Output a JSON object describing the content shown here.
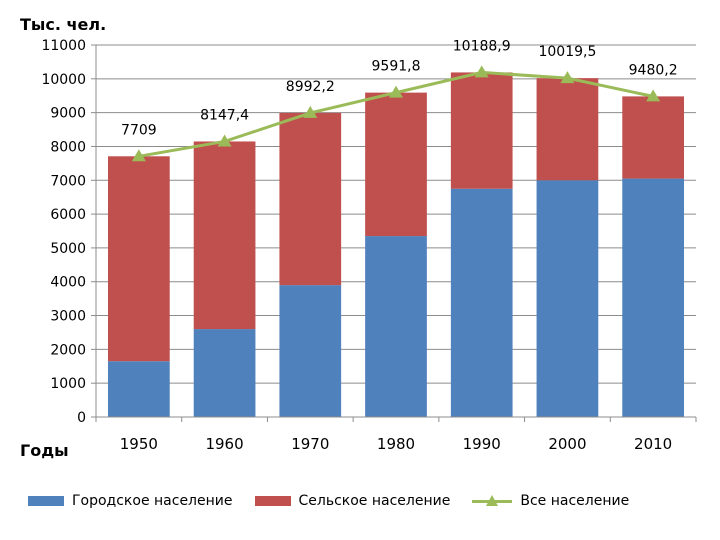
{
  "chart_data": {
    "type": "bar",
    "stacked": true,
    "ylabel": "Тыс. чел.",
    "xlabel": "Годы",
    "categories": [
      "1950",
      "1960",
      "1970",
      "1980",
      "1990",
      "2000",
      "2010"
    ],
    "ylim": [
      0,
      11000
    ],
    "yticks": [
      "0",
      "1000",
      "2000",
      "3000",
      "4000",
      "5000",
      "6000",
      "7000",
      "8000",
      "9000",
      "10000",
      "11000"
    ],
    "grid": true,
    "legend_position": "bottom",
    "series": [
      {
        "name": "Городское население",
        "kind": "bar",
        "color": "#4F81BD",
        "values": [
          1650,
          2600,
          3900,
          5350,
          6750,
          7000,
          7050
        ]
      },
      {
        "name": "Сельское население",
        "kind": "bar",
        "color": "#C0504D",
        "values": [
          6059,
          5547.4,
          5092.2,
          4241.8,
          3438.9,
          3019.5,
          2430.2
        ]
      },
      {
        "name": "Все население",
        "kind": "line",
        "color": "#9BBB59",
        "values": [
          7709,
          8147.4,
          8992.2,
          9591.8,
          10188.9,
          10019.5,
          9480.2
        ],
        "labels": [
          "7709",
          "8147,4",
          "8992,2",
          "9591,8",
          "10188,9",
          "10019,5",
          "9480,2"
        ]
      }
    ]
  }
}
